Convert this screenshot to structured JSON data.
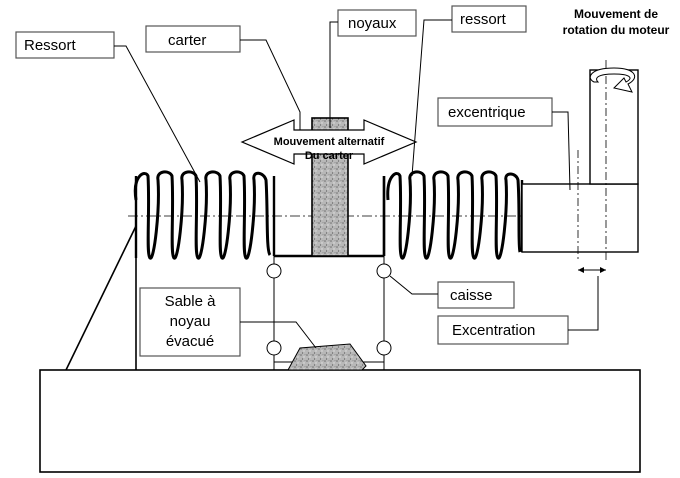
{
  "labels": {
    "ressort_left": "Ressort",
    "carter": "carter",
    "noyaux": "noyaux",
    "ressort_right": "ressort",
    "moteur_line1": "Mouvement de",
    "moteur_line2": "rotation du moteur",
    "excentrique": "excentrique",
    "mouvement_line1": "Mouvement alternatif",
    "mouvement_line2": "Du carter",
    "caisse": "caisse",
    "sable_line1": "Sable à",
    "sable_line2": "noyau",
    "sable_line3": "évacué",
    "excentration": "Excentration"
  },
  "colors": {
    "stroke": "#000000",
    "box_border": "#555555",
    "core_fill": "#b5b5b5",
    "sand_fill": "#9a9a9a"
  }
}
